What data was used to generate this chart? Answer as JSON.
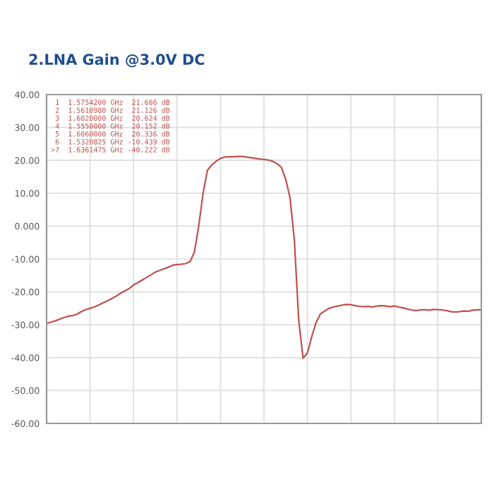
{
  "chart_data": {
    "type": "line",
    "title": "2.LNA Gain @3.0V DC",
    "categories": [
      null,
      null,
      null,
      null,
      null,
      null,
      null,
      null,
      null,
      null,
      null,
      null,
      null,
      null,
      null,
      null,
      null,
      null,
      null,
      null,
      null,
      null,
      null,
      null,
      null,
      null,
      null,
      null,
      null,
      null,
      null,
      null,
      null,
      null,
      null,
      null,
      null,
      null,
      null,
      null,
      null,
      null,
      null,
      null,
      null,
      null,
      null,
      null,
      null,
      null,
      null,
      null,
      null,
      null,
      null,
      null,
      null,
      null,
      null,
      null,
      null,
      null,
      null,
      null,
      null,
      null,
      null,
      null,
      null,
      null,
      null,
      null,
      null,
      null,
      null,
      null,
      null,
      null,
      null,
      null,
      null,
      null,
      null,
      null,
      null,
      null,
      null,
      null,
      null,
      null,
      null,
      null,
      null,
      null,
      null,
      null,
      null,
      null,
      null,
      null,
      null
    ],
    "series": [
      {
        "color": "#c0504d",
        "values": [
          -29.6,
          -29.2,
          -28.8,
          -28.3,
          -27.8,
          -27.4,
          -27.2,
          -26.8,
          -26.0,
          -25.4,
          -25.0,
          -24.6,
          -24.0,
          -23.3,
          -22.7,
          -22.0,
          -21.3,
          -20.4,
          -19.7,
          -19.0,
          -17.9,
          -17.2,
          -16.4,
          -15.6,
          -14.8,
          -14.0,
          -13.5,
          -13.0,
          -12.5,
          -11.9,
          -11.7,
          -11.6,
          -11.4,
          -10.8,
          -7.9,
          0,
          10,
          17,
          18.6,
          19.7,
          20.6,
          21.0,
          21.1,
          21.1,
          21.2,
          21.2,
          21.0,
          20.8,
          20.6,
          20.4,
          20.3,
          20.1,
          19.7,
          19.0,
          17.9,
          14.3,
          8.6,
          -4.3,
          -28.6,
          -40.2,
          -38.6,
          -33.6,
          -29.3,
          -26.7,
          -25.8,
          -25.0,
          -24.6,
          -24.3,
          -24.0,
          -23.8,
          -23.9,
          -24.2,
          -24.4,
          -24.5,
          -24.4,
          -24.6,
          -24.3,
          -24.2,
          -24.3,
          -24.5,
          -24.3,
          -24.6,
          -24.9,
          -25.2,
          -25.5,
          -25.7,
          -25.5,
          -25.4,
          -25.6,
          -25.3,
          -25.4,
          -25.5,
          -25.7,
          -26.0,
          -26.1,
          -26.0,
          -25.8,
          -25.9,
          -25.6,
          -25.5,
          -25.4
        ]
      }
    ],
    "ylim": [
      -60,
      40
    ],
    "yticks": [
      {
        "value": 40,
        "label": "40.00"
      },
      {
        "value": 30,
        "label": "30.00"
      },
      {
        "value": 20,
        "label": "20.00"
      },
      {
        "value": 10,
        "label": "10.00"
      },
      {
        "value": 0,
        "label": "0.000"
      },
      {
        "value": -10,
        "label": "-10.00"
      },
      {
        "value": -20,
        "label": "-20.00"
      },
      {
        "value": -30,
        "label": "-30.00"
      },
      {
        "value": -40,
        "label": "-40.00"
      },
      {
        "value": -50,
        "label": "-50.00"
      },
      {
        "value": -60,
        "label": "-60.00"
      }
    ],
    "grid": true,
    "annotations": [
      " 1  1.5754200 GHz  21.686 dB",
      " 2  1.5610980 GHz  21.126 dB",
      " 3  1.6020000 GHz  20.624 dB",
      " 4  1.5550000 GHz  20.152 dB",
      " 5  1.6060000 GHz  20.336 dB",
      " 6  1.5320825 GHz -10.439 dB",
      ">7  1.6361475 GHz -40.222 dB"
    ]
  }
}
